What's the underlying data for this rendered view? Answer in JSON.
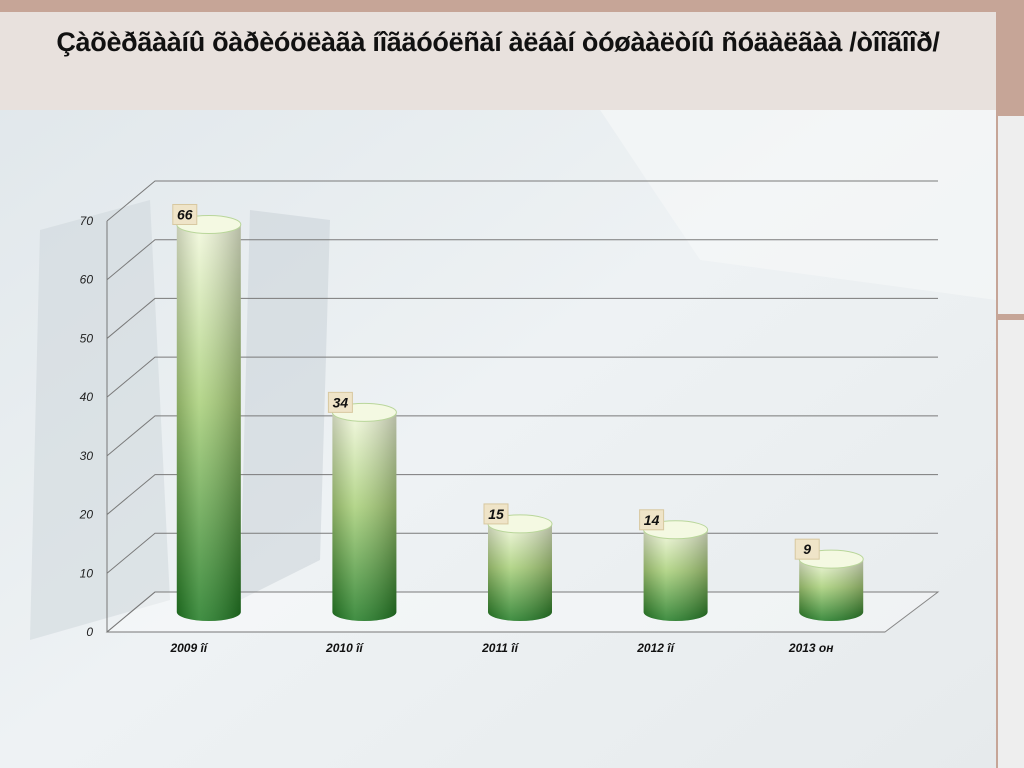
{
  "chart_data": {
    "type": "bar",
    "title": "Çàõèðãààíû õàðèóöëàãà íîãäóóëñàí àëáàí òóøààëòíû ñóäàëãàà /òîîãîîð/",
    "categories": [
      "2009 îí",
      "2010 îí",
      "2011 îí",
      "2012 îí",
      "2013 он"
    ],
    "values": [
      66,
      34,
      15,
      14,
      9
    ],
    "ylim": [
      0,
      70
    ],
    "yticks": [
      0,
      10,
      20,
      30,
      40,
      50,
      60,
      70
    ],
    "grid": true
  }
}
